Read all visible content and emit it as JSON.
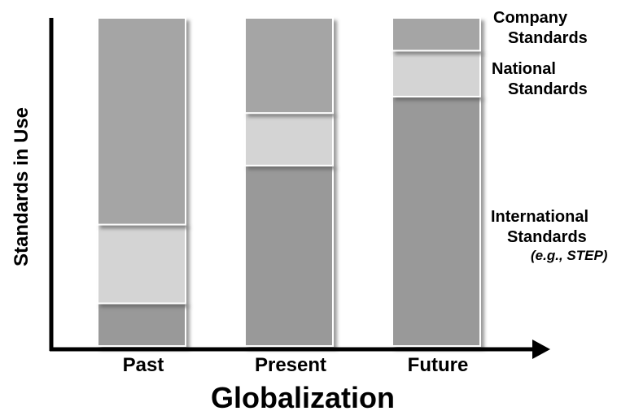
{
  "chart_data": {
    "type": "bar",
    "stacked": true,
    "categories": [
      "Past",
      "Present",
      "Future"
    ],
    "series": [
      {
        "name": "International Standards (e.g., STEP)",
        "values": [
          13,
          55,
          76
        ],
        "color": "#999999"
      },
      {
        "name": "National Standards",
        "values": [
          24,
          16,
          14
        ],
        "color": "#d4d4d4"
      },
      {
        "name": "Company Standards",
        "values": [
          63,
          29,
          10
        ],
        "color": "#a5a5a5"
      }
    ],
    "xlabel": "Globalization",
    "ylabel": "Standards in Use",
    "ylim": [
      0,
      100
    ],
    "grid": false,
    "legend_placement": "right",
    "legend_labels": {
      "company": [
        "Company",
        "Standards"
      ],
      "national": [
        "National",
        "Standards"
      ],
      "international": [
        "International",
        "Standards"
      ],
      "international_note": "(e.g., STEP)"
    }
  }
}
